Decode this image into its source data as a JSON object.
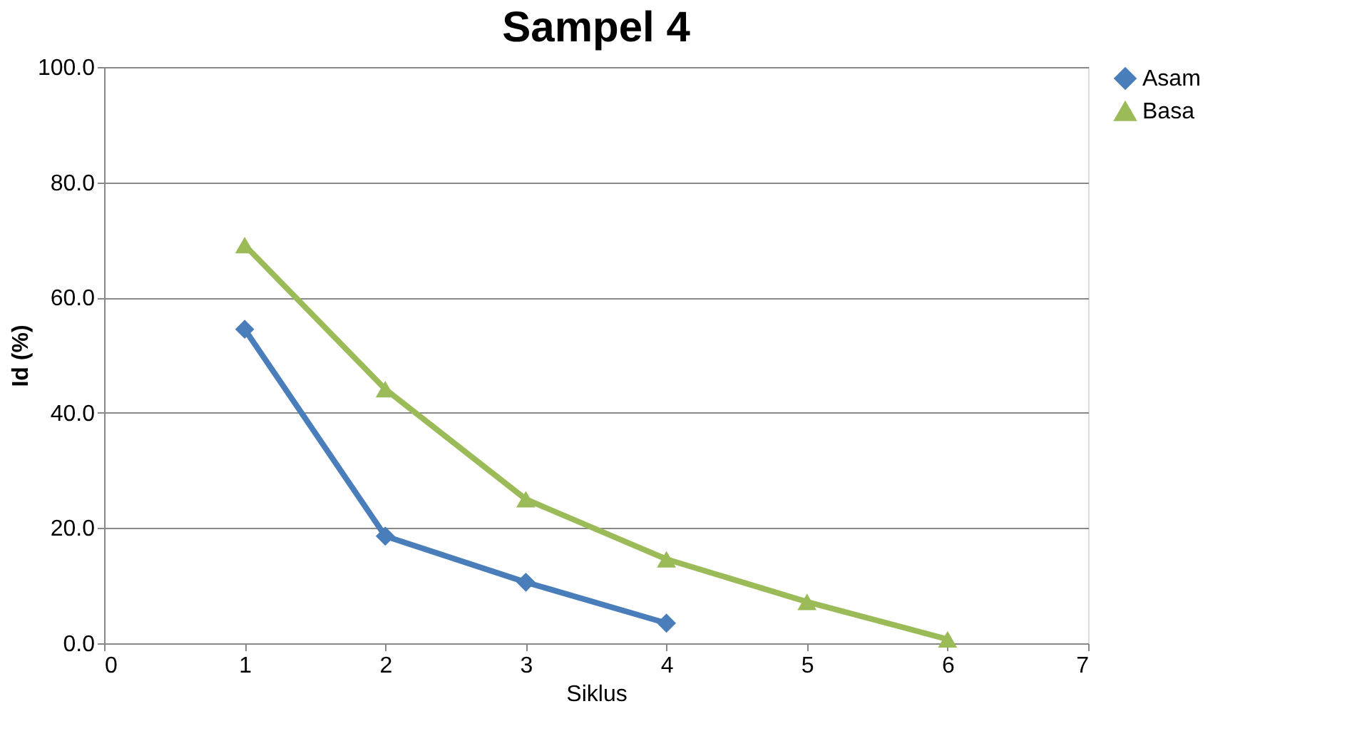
{
  "chart_data": {
    "type": "line",
    "title": "Sampel 4",
    "xlabel": "Siklus",
    "ylabel": "Id (%)",
    "xlim": [
      0,
      7
    ],
    "xticks": [
      0,
      1,
      2,
      3,
      4,
      5,
      6,
      7
    ],
    "ylim": [
      0,
      100
    ],
    "yticks": [
      {
        "value": 0,
        "label": "0.0"
      },
      {
        "value": 20,
        "label": "20.0"
      },
      {
        "value": 40,
        "label": "40.0"
      },
      {
        "value": 60,
        "label": "60.0"
      },
      {
        "value": 80,
        "label": "80.0"
      },
      {
        "value": 100,
        "label": "100.0"
      }
    ],
    "grid": "y",
    "legend": "right",
    "series": [
      {
        "name": "Asam",
        "color": "#4a7ebb",
        "marker": "diamond",
        "x": [
          1,
          2,
          3,
          4
        ],
        "values": [
          54.5,
          18.6,
          10.6,
          3.5
        ]
      },
      {
        "name": "Basa",
        "color": "#9bbb59",
        "marker": "triangle",
        "x": [
          1,
          2,
          3,
          4,
          5,
          6
        ],
        "values": [
          69.1,
          44.1,
          25.0,
          14.6,
          7.2,
          0.7
        ]
      }
    ]
  }
}
